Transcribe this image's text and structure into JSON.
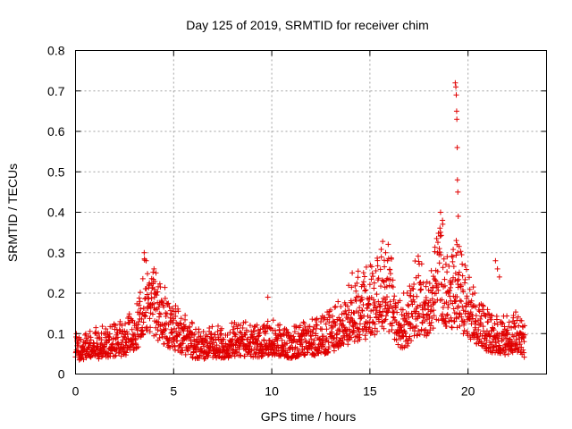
{
  "chart_data": {
    "type": "scatter",
    "title": "Day 125 of 2019, SRMTID for receiver chim",
    "xlabel": "GPS time / hours",
    "ylabel": "SRMTID / TECUs",
    "xlim": [
      0,
      24
    ],
    "ylim": [
      0,
      0.8
    ],
    "x_ticks": [
      0,
      5,
      10,
      15,
      20
    ],
    "y_ticks": [
      0,
      0.1,
      0.2,
      0.3,
      0.4,
      0.5,
      0.6,
      0.7,
      0.8
    ],
    "x_tick_labels": [
      "0",
      "5",
      "10",
      "15",
      "20"
    ],
    "y_tick_labels": [
      "0",
      "0.1",
      "0.2",
      "0.3",
      "0.4",
      "0.5",
      "0.6",
      "0.7",
      "0.8"
    ],
    "grid": true,
    "marker": "+",
    "series_color": "#e00000",
    "series": [
      {
        "name": "SRMTID",
        "envelope_x": [
          0.0,
          0.5,
          1.0,
          1.5,
          2.0,
          2.5,
          3.0,
          3.3,
          3.6,
          3.9,
          4.2,
          4.5,
          5.0,
          5.5,
          6.0,
          6.5,
          7.0,
          7.5,
          8.0,
          8.5,
          9.0,
          9.5,
          10.0,
          10.5,
          11.0,
          11.5,
          12.0,
          12.5,
          13.0,
          13.5,
          14.0,
          14.5,
          15.0,
          15.3,
          15.7,
          16.0,
          16.5,
          17.0,
          17.3,
          17.7,
          18.0,
          18.3,
          18.6,
          19.0,
          19.5,
          20.0,
          20.5,
          21.0,
          21.5,
          22.0,
          22.5,
          22.9
        ],
        "envelope_y": [
          0.06,
          0.06,
          0.065,
          0.07,
          0.075,
          0.08,
          0.1,
          0.13,
          0.19,
          0.17,
          0.15,
          0.13,
          0.11,
          0.09,
          0.07,
          0.065,
          0.07,
          0.07,
          0.075,
          0.08,
          0.075,
          0.07,
          0.085,
          0.07,
          0.07,
          0.075,
          0.08,
          0.085,
          0.095,
          0.11,
          0.14,
          0.15,
          0.16,
          0.17,
          0.2,
          0.19,
          0.11,
          0.13,
          0.17,
          0.18,
          0.15,
          0.22,
          0.24,
          0.2,
          0.19,
          0.15,
          0.12,
          0.1,
          0.09,
          0.085,
          0.09,
          0.07
        ],
        "spike": {
          "x": [
            19.35,
            19.38,
            19.4,
            19.42,
            19.43,
            19.45,
            19.46,
            19.48,
            19.5,
            19.4,
            19.44,
            19.47
          ],
          "y": [
            0.72,
            0.71,
            0.69,
            0.65,
            0.63,
            0.56,
            0.48,
            0.45,
            0.39,
            0.33,
            0.32,
            0.3
          ]
        },
        "peaks": {
          "x": [
            3.5,
            3.6,
            4.0,
            4.1,
            15.8,
            15.9,
            18.6,
            18.7,
            21.4,
            21.5,
            21.6,
            9.8,
            14.1
          ],
          "y": [
            0.3,
            0.28,
            0.26,
            0.25,
            0.3,
            0.28,
            0.4,
            0.38,
            0.28,
            0.26,
            0.24,
            0.19,
            0.25
          ]
        }
      }
    ]
  }
}
